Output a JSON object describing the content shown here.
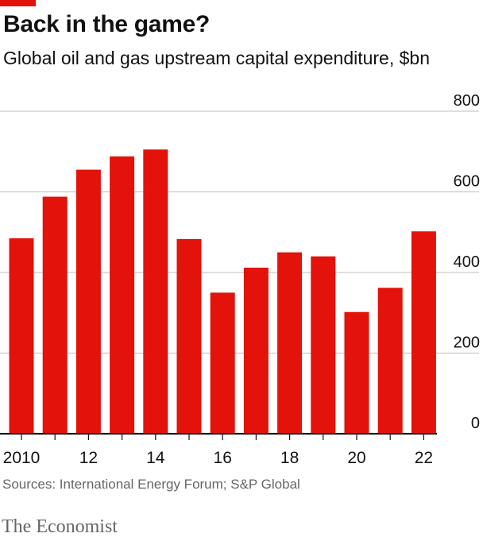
{
  "title": "Back in the game?",
  "subtitle": "Global oil and gas upstream capital expenditure, $bn",
  "source": "Sources: International Energy Forum; S&P Global",
  "brand": "The Economist",
  "colors": {
    "bar": "#e3120b",
    "accent": "#e3120b",
    "grid": "#c9c9c9"
  },
  "chart_data": {
    "type": "bar",
    "title": "Back in the game?",
    "ylabel": "Global oil and gas upstream capital expenditure, $bn",
    "categories": [
      "2010",
      "2011",
      "2012",
      "2013",
      "2014",
      "2015",
      "2016",
      "2017",
      "2018",
      "2019",
      "2020",
      "2021",
      "2022"
    ],
    "values": [
      485,
      588,
      655,
      688,
      705,
      483,
      350,
      412,
      450,
      440,
      302,
      362,
      502
    ],
    "ylim": [
      0,
      800
    ],
    "yticks": [
      0,
      200,
      400,
      600,
      800
    ],
    "xtick_labels": [
      "2010",
      "",
      "12",
      "",
      "14",
      "",
      "16",
      "",
      "18",
      "",
      "20",
      "",
      "22"
    ],
    "grid": true,
    "yaxis_position": "right"
  }
}
